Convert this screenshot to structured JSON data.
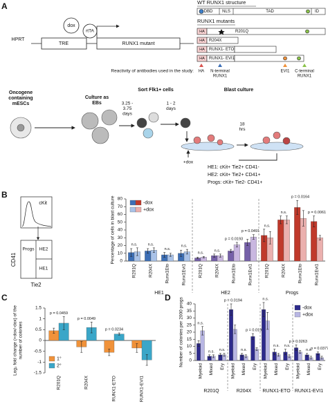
{
  "diagram": {
    "panel_labels": [
      "A",
      "B",
      "C",
      "D"
    ],
    "construct": {
      "hprt": "HPRT",
      "dox": "dox",
      "rtta": "rtTA",
      "tre": "TRE",
      "gene": "RUNX1 mutant"
    },
    "wt": {
      "title": "WT RUNX1 structure",
      "domains": [
        "DBD",
        "NLS",
        "TAD",
        "ID"
      ]
    },
    "mutants": {
      "title": "RUNX1 mutants",
      "tag": "HA",
      "rows": [
        "R201Q",
        "R204X",
        "RUNX1- ETO",
        "RUNX1- EVI1"
      ]
    },
    "reactivity": {
      "caption": "Reactivity of antibodies used in the study:",
      "labels": [
        [
          "HA"
        ],
        [
          "N-terminal",
          "RUNX1"
        ],
        [
          "EVI1"
        ],
        [
          "C-terminal",
          "RUNX1"
        ]
      ]
    },
    "workflow": {
      "steps": [
        [
          "Oncogene",
          "containing",
          "mESCs"
        ],
        [
          "Culture as",
          "EBs"
        ],
        [
          "Sort Flk1+ cells"
        ],
        [
          "Blast culture"
        ]
      ],
      "times": [
        [
          "3.25 -",
          "3.75",
          "days"
        ],
        [
          "1 - 2",
          "days"
        ],
        [
          "18",
          "hrs"
        ]
      ],
      "dox": "+dox",
      "definitions": [
        "HE1: cKit+ Tie2+ CD41-",
        "HE2: cKit+ Tie2+ CD41+",
        "Progs: cKit+ Tie2- CD41+"
      ]
    },
    "gating": {
      "marker": "cKit",
      "y_axis": "CD41",
      "x_axis": "Tie2",
      "quadrants": [
        "Progs",
        "HE2",
        "HE1"
      ]
    }
  },
  "chart_data": [
    {
      "type": "bar",
      "ylabel": [
        "Percentage of cells in blast culture"
      ],
      "categories": [
        "R201Q",
        "R204X",
        "Runx1Eto",
        "Runx1Evi1",
        "R201Q",
        "R204X",
        "Runx1Eto",
        "Runx1Evi1",
        "R201Q",
        "R204X",
        "Runx1Eto",
        "Runx1Evi1"
      ],
      "groups": [
        "HE1",
        "HE2",
        "Progs"
      ],
      "series": [
        {
          "name": "-dox",
          "color": [
            "#3d6fb6",
            "#7560a8",
            "#c0392b"
          ],
          "values": [
            11,
            13,
            8,
            10,
            4,
            7,
            13,
            24,
            33,
            53,
            69,
            51
          ],
          "errors": [
            5,
            3,
            3,
            4,
            1,
            2,
            2,
            4,
            8,
            5,
            9,
            7
          ]
        },
        {
          "name": "+dox",
          "color": [
            "#a9c2e8",
            "#c9b7e0",
            "#ebb0ae"
          ],
          "values": [
            12,
            14,
            8,
            12,
            5,
            7,
            21,
            31,
            30,
            53,
            55,
            30
          ],
          "errors": [
            5,
            3,
            2,
            3,
            1,
            2,
            3,
            3,
            8,
            5,
            10,
            3
          ]
        }
      ],
      "annotations": [
        "n.s.",
        "n.s.",
        "n.s.",
        "n.s.",
        "n.s.",
        "n.s.",
        "p = 0.0193",
        "p = 0.0491",
        "n.s.",
        "n.s.",
        "p = 0.0164",
        "p = 0.0061"
      ],
      "ylim": [
        0,
        80
      ],
      "yticks": [
        0,
        10,
        20,
        30,
        40,
        50,
        60,
        70,
        80
      ],
      "legend": "upper left"
    },
    {
      "type": "bar",
      "ylabel": [
        "Log₂ fold change (+dox/-dox) of the",
        "number of colonies"
      ],
      "categories": [
        "R201Q",
        "R204X",
        "RUNX1-ETO",
        "RUNX1-EVI1"
      ],
      "series": [
        {
          "name": "1°",
          "color": "#f0923a",
          "values": [
            0.45,
            -0.3,
            -0.55,
            -0.35
          ],
          "errors": [
            0.12,
            0.25,
            0.15,
            0.2
          ]
        },
        {
          "name": "2°",
          "color": "#3aa6c8",
          "values": [
            0.8,
            0.6,
            0.3,
            -0.9
          ],
          "errors": [
            0.3,
            0.25,
            0.05,
            0.25
          ]
        }
      ],
      "annotations": [
        "p = 0.0459",
        "p = 0.0049",
        "p = 0.0234",
        null
      ],
      "ylim": [
        -1.5,
        1.5
      ],
      "yticks": [
        -1.5,
        -1,
        -0.5,
        0,
        0.5,
        1,
        1.5
      ],
      "legend": "lower left"
    },
    {
      "type": "bar",
      "ylabel": [
        "Number of colonies per 2000 progs"
      ],
      "categories": [
        "Myeloid",
        "Mixed",
        "Ery",
        "Myeloid",
        "Mixed",
        "Ery",
        "Myeloid",
        "Mixed",
        "Ery",
        "Myeloid",
        "Mixed",
        "Ery"
      ],
      "groups": [
        "R201Q",
        "R204X",
        "RUNX1-ETO",
        "RUNX1-EVI1"
      ],
      "series": [
        {
          "name": "-dox",
          "color": "#2d2a8c",
          "values": [
            12,
            3,
            4,
            36,
            4,
            17,
            36,
            6,
            6,
            9,
            4,
            5
          ],
          "errors": [
            2,
            1,
            1,
            4,
            1,
            2,
            5,
            2,
            2,
            2,
            1,
            1
          ]
        },
        {
          "name": "+dox",
          "color": "#b8b6e3",
          "values": [
            21,
            3,
            4,
            22,
            3,
            8,
            28,
            4,
            3,
            6,
            2,
            2
          ],
          "errors": [
            3,
            1,
            1,
            3,
            1,
            1,
            6,
            1,
            1,
            1,
            1,
            1
          ]
        }
      ],
      "annotations": [
        "n.s.",
        "n.s.",
        "n.s.",
        "p = 0.0194",
        "n.s.",
        "p = 0.0198",
        "n.s.",
        "n.s.",
        "n.s.",
        "p = 0.0263",
        "n.s.",
        "p = 0.0377"
      ],
      "ylim": [
        0,
        40
      ],
      "yticks": [
        0,
        5,
        10,
        15,
        20,
        25,
        30,
        35,
        40
      ],
      "legend": "upper right"
    }
  ]
}
